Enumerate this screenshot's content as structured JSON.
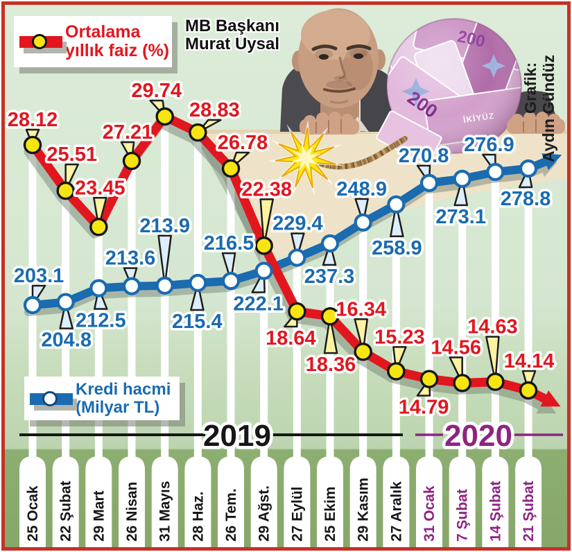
{
  "header": {
    "title_line1": "MB Başkanı",
    "title_line2": "Murat Uysal",
    "credit_line1": "Grafik:",
    "credit_line2": "Aydın Gündüz"
  },
  "legends": {
    "interest": {
      "line1": "Ortalama",
      "line2": "yıllık faiz (%)"
    },
    "credit": {
      "line1": "Kredi hacmi",
      "line2": "(Milyar TL)"
    }
  },
  "photo": {
    "banknote_value": "200",
    "banknote_label": "İKİYÜZ"
  },
  "colors": {
    "background_top": "#dcecd9",
    "background_mid": "#c6dcba",
    "bottom_band": "#8dae71",
    "frame_border": "#c43228",
    "table": "#eee3c8",
    "red": "#e2161f",
    "blue": "#1a6bb0",
    "yellow_marker": "#f7e511",
    "purple": "#8e2482",
    "black": "#161616"
  },
  "chart_data": {
    "type": "line",
    "title": "MB Başkanı Murat Uysal",
    "categories": [
      "25 Ocak",
      "22 Şubat",
      "29 Mart",
      "26 Nisan",
      "31 Mayıs",
      "28 Haz.",
      "26 Tem.",
      "29 Ağst.",
      "27 Eylül",
      "25 Ekim",
      "29 Kasım",
      "27 Aralık",
      "31 Ocak",
      "7 Şubat",
      "14 Şubat",
      "21 Şubat"
    ],
    "year_split_index": 12,
    "year_markers": [
      {
        "label": "2019",
        "color": "#161616"
      },
      {
        "label": "2020",
        "color": "#8e2482"
      }
    ],
    "grid": "vertical-white-stripes",
    "legend_position": "overlay",
    "series": [
      {
        "name": "Ortalama yıllık faiz (%)",
        "unit": "%",
        "color": "#e2161f",
        "marker_fill": "#f7e511",
        "decimals": 2,
        "values": [
          28.12,
          25.51,
          23.45,
          27.21,
          29.74,
          28.83,
          26.78,
          22.38,
          18.64,
          18.36,
          16.34,
          15.23,
          14.79,
          14.56,
          14.63,
          14.14
        ],
        "label_offsets": [
          [
            0,
            -37
          ],
          [
            9,
            -53
          ],
          [
            2,
            -57
          ],
          [
            -6,
            -42
          ],
          [
            -12,
            -38
          ],
          [
            24,
            -33
          ],
          [
            17,
            -38
          ],
          [
            4,
            -82
          ],
          [
            -9,
            38
          ],
          [
            1,
            69
          ],
          [
            -3,
            -62
          ],
          [
            5,
            -50
          ],
          [
            -8,
            40
          ],
          [
            -9,
            -52
          ],
          [
            -4,
            -80
          ],
          [
            1,
            -43
          ]
        ]
      },
      {
        "name": "Kredi hacmi (Milyar TL)",
        "unit": "Milyar TL",
        "color": "#1a6bb0",
        "marker_fill": "#ffffff",
        "decimals": 1,
        "values": [
          203.1,
          204.8,
          212.5,
          213.6,
          213.9,
          215.4,
          216.5,
          222.1,
          229.4,
          237.3,
          248.9,
          258.9,
          270.8,
          273.1,
          276.9,
          278.8
        ],
        "label_offsets": [
          [
            9,
            -43
          ],
          [
            1,
            54
          ],
          [
            3,
            46
          ],
          [
            -2,
            -41
          ],
          [
            0,
            -87
          ],
          [
            -1,
            55
          ],
          [
            -3,
            -55
          ],
          [
            -8,
            47
          ],
          [
            1,
            -50
          ],
          [
            -1,
            47
          ],
          [
            -2,
            -49
          ],
          [
            1,
            62
          ],
          [
            -8,
            -40
          ],
          [
            -2,
            54
          ],
          [
            -9,
            -40
          ],
          [
            -4,
            43
          ]
        ]
      }
    ],
    "y_axis": {
      "left_series_range": [
        14,
        30
      ],
      "right_series_range": [
        200,
        280
      ],
      "gridlines_horizontal": false
    }
  }
}
